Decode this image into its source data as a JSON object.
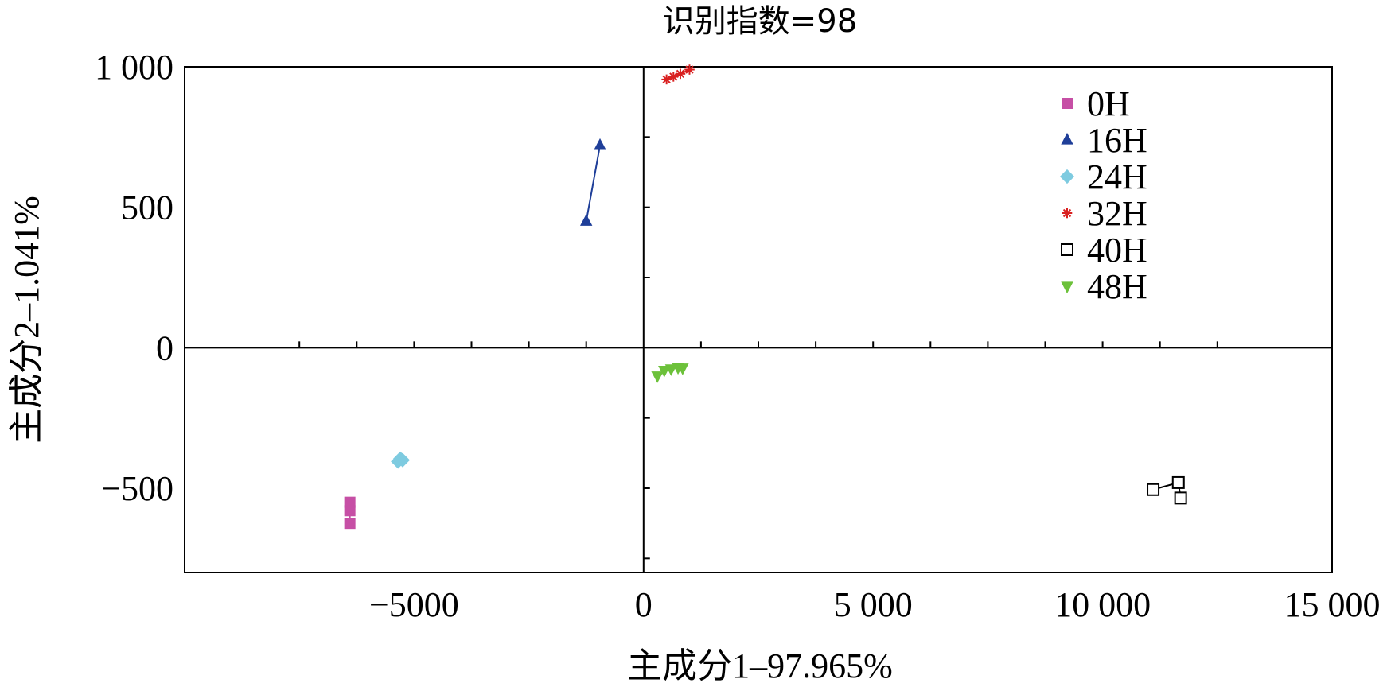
{
  "chart_data": {
    "type": "scatter",
    "title": "识别指数=98",
    "xlabel": "主成分1–97.965%",
    "ylabel": "主成分2–1.041%",
    "xlim": [
      -10000,
      15000
    ],
    "ylim": [
      -800,
      1000
    ],
    "x_ticks": [
      {
        "value": -5000,
        "label": "−5000"
      },
      {
        "value": 0,
        "label": "0"
      },
      {
        "value": 5000,
        "label": "5 000"
      },
      {
        "value": 10000,
        "label": "10 000"
      },
      {
        "value": 15000,
        "label": "15 000"
      }
    ],
    "y_ticks": [
      {
        "value": 1000,
        "label": "1 000"
      },
      {
        "value": 500,
        "label": "500"
      },
      {
        "value": 0,
        "label": "0"
      },
      {
        "value": -500,
        "label": "−500"
      }
    ],
    "legend_position": "top-right",
    "series": [
      {
        "name": "0H",
        "marker": "square",
        "color": "#c64fa5",
        "points": [
          [
            -6400,
            -550
          ],
          [
            -6400,
            -580
          ],
          [
            -6400,
            -625
          ]
        ]
      },
      {
        "name": "16H",
        "marker": "triangle",
        "color": "#1f3f99",
        "points": [
          [
            -1250,
            450
          ],
          [
            -950,
            720
          ]
        ]
      },
      {
        "name": "24H",
        "marker": "diamond",
        "color": "#7ecbe0",
        "points": [
          [
            -5350,
            -405
          ],
          [
            -5300,
            -395
          ],
          [
            -5250,
            -400
          ]
        ]
      },
      {
        "name": "32H",
        "marker": "star",
        "color": "#d92020",
        "points": [
          [
            500,
            955
          ],
          [
            650,
            965
          ],
          [
            800,
            975
          ],
          [
            1000,
            990
          ]
        ]
      },
      {
        "name": "40H",
        "marker": "open-square",
        "color": "#000000",
        "points": [
          [
            11100,
            -505
          ],
          [
            11650,
            -480
          ],
          [
            11700,
            -535
          ]
        ]
      },
      {
        "name": "48H",
        "marker": "triangle-down",
        "color": "#6cc13a",
        "points": [
          [
            300,
            -100
          ],
          [
            450,
            -80
          ],
          [
            600,
            -75
          ],
          [
            750,
            -70
          ],
          [
            850,
            -72
          ]
        ]
      }
    ]
  }
}
